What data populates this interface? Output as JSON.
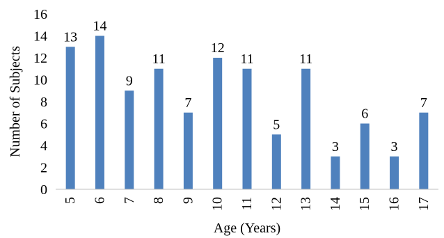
{
  "chart_data": {
    "type": "bar",
    "categories": [
      "5",
      "6",
      "7",
      "8",
      "9",
      "10",
      "11",
      "12",
      "13",
      "14",
      "15",
      "16",
      "17"
    ],
    "values": [
      13,
      14,
      9,
      11,
      7,
      12,
      11,
      5,
      11,
      3,
      6,
      3,
      7
    ],
    "title": "",
    "xlabel": "Age (Years)",
    "ylabel": "Number of Subjects",
    "ylim": [
      0,
      16
    ],
    "yticks": [
      0,
      2,
      4,
      6,
      8,
      10,
      12,
      14,
      16
    ],
    "grid": false,
    "legend": "none",
    "data_labels": true,
    "bar_color": "#4F81BD"
  }
}
